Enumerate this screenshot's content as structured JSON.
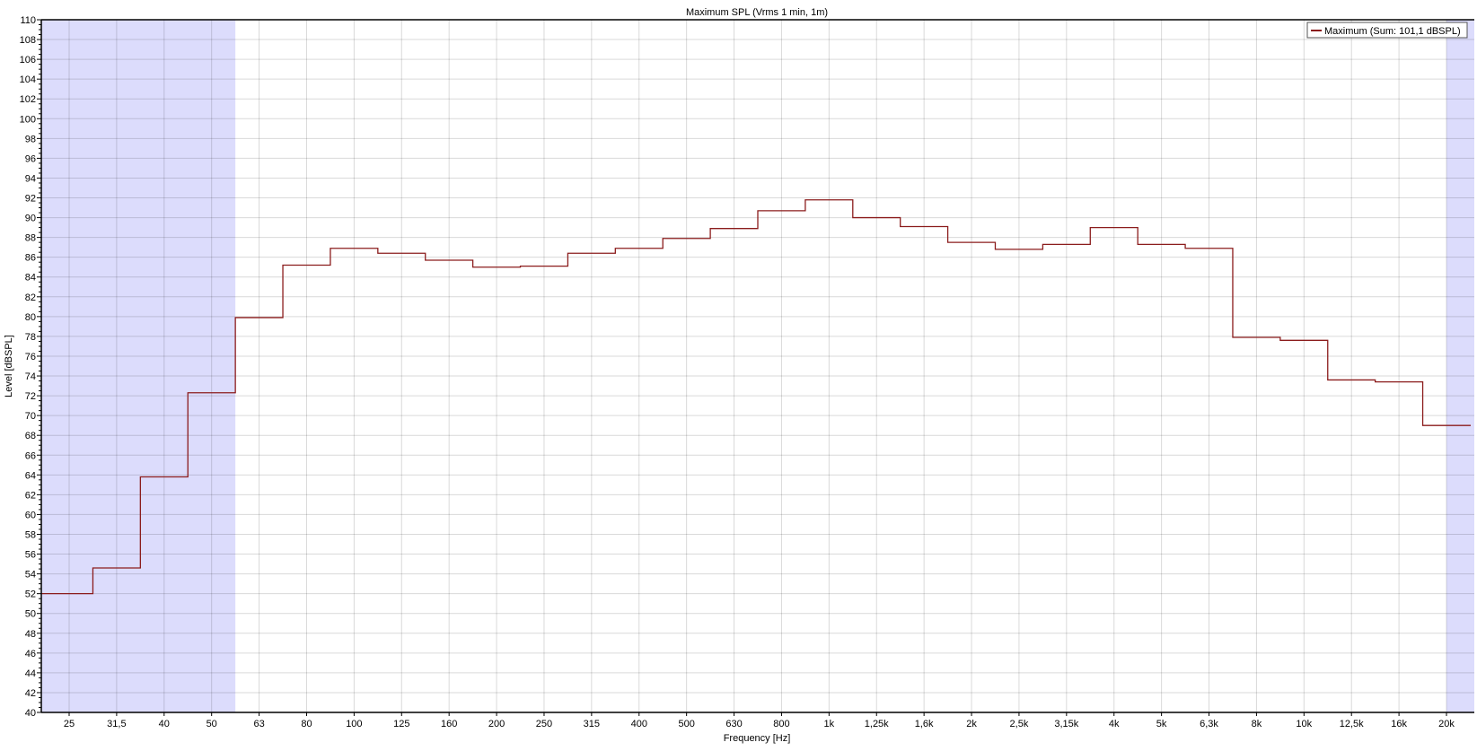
{
  "chart_data": {
    "type": "line",
    "step": true,
    "title": "Maximum SPL (Vrms 1 min, 1m)",
    "xlabel": "Frequency [Hz]",
    "ylabel": "Level [dBSPL]",
    "ylim": [
      40,
      110
    ],
    "ytick_step": 2,
    "grid": true,
    "legend_position": "top-right",
    "categories": [
      "25",
      "31,5",
      "40",
      "50",
      "63",
      "80",
      "100",
      "125",
      "160",
      "200",
      "250",
      "315",
      "400",
      "500",
      "630",
      "800",
      "1k",
      "1,25k",
      "1,6k",
      "2k",
      "2,5k",
      "3,15k",
      "4k",
      "5k",
      "6,3k",
      "8k",
      "10k",
      "12,5k",
      "16k",
      "20k"
    ],
    "series": [
      {
        "name": "Maximum (Sum: 101,1 dBSPL)",
        "color": "#8b1c1c",
        "values": [
          52.0,
          54.6,
          63.8,
          72.3,
          79.9,
          85.2,
          86.9,
          86.4,
          85.7,
          85.0,
          85.1,
          86.4,
          86.9,
          87.9,
          88.9,
          90.7,
          91.8,
          90.0,
          89.1,
          87.5,
          86.8,
          87.3,
          89.0,
          87.3,
          86.9,
          77.9,
          77.6,
          73.6,
          73.4,
          69.0
        ]
      }
    ],
    "shaded_ranges": [
      {
        "from": "25",
        "to": "50",
        "color": "#dcdcfc"
      },
      {
        "from": "20k",
        "to": "20k",
        "color": "#dcdcfc"
      }
    ]
  }
}
